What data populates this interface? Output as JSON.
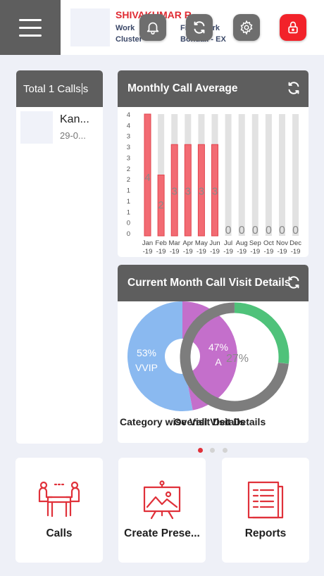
{
  "header": {
    "user_name": "SHIVAKUMAR R",
    "work_label": "Work",
    "cluster_label": "Cluster",
    "field_work_label": "Field Work",
    "field_work_value": "Bondali - EX"
  },
  "calls_card": {
    "title": "Total 1 Calls",
    "cursor_text": "s",
    "item": {
      "name": "Kan...",
      "date": "29-0..."
    }
  },
  "chart_data": [
    {
      "type": "bar",
      "title": "Monthly Call Average",
      "categories": [
        "Jan -19",
        "Feb -19",
        "Mar -19",
        "Apr -19",
        "May -19",
        "Jun -19",
        "Jul -19",
        "Aug -19",
        "Sep -19",
        "Oct -19",
        "Nov -19",
        "Dec -19"
      ],
      "values": [
        4,
        2,
        3,
        3,
        3,
        3,
        0,
        0,
        0,
        0,
        0,
        0
      ],
      "y_tick_labels": [
        "4",
        "4",
        "3",
        "3",
        "3",
        "2",
        "2",
        "1",
        "1",
        "1",
        "0",
        "0"
      ],
      "ylim": [
        0,
        4
      ],
      "bar_color": "#f26b73",
      "track_color": "#e2e2e2"
    },
    {
      "type": "pie",
      "title": "Current Month Call Visit Details",
      "pies": [
        {
          "caption": "Category wise Visit Details",
          "slices": [
            {
              "label": "VVIP",
              "value": 53,
              "display": "53%",
              "color": "#8ab9f0"
            },
            {
              "label": "A",
              "value": 47,
              "display": "47%",
              "color": "#c46fcb"
            }
          ]
        },
        {
          "caption": "Overall Visit Details",
          "slices": [
            {
              "label": "",
              "value": 27,
              "display": "27%",
              "color": "#4fc27a"
            },
            {
              "label": "",
              "value": 73,
              "display": "",
              "color": "#7d7d7d"
            }
          ]
        }
      ]
    }
  ],
  "pager": {
    "count": 3,
    "active": 0
  },
  "tiles": [
    {
      "label": "Calls",
      "icon": "meeting-icon"
    },
    {
      "label": "Create Prese...",
      "icon": "presentation-icon"
    },
    {
      "label": "Reports",
      "icon": "report-icon"
    }
  ],
  "colors": {
    "accent": "#e0313a",
    "header_gray": "#5e5e5e",
    "background": "#eef0f7"
  }
}
